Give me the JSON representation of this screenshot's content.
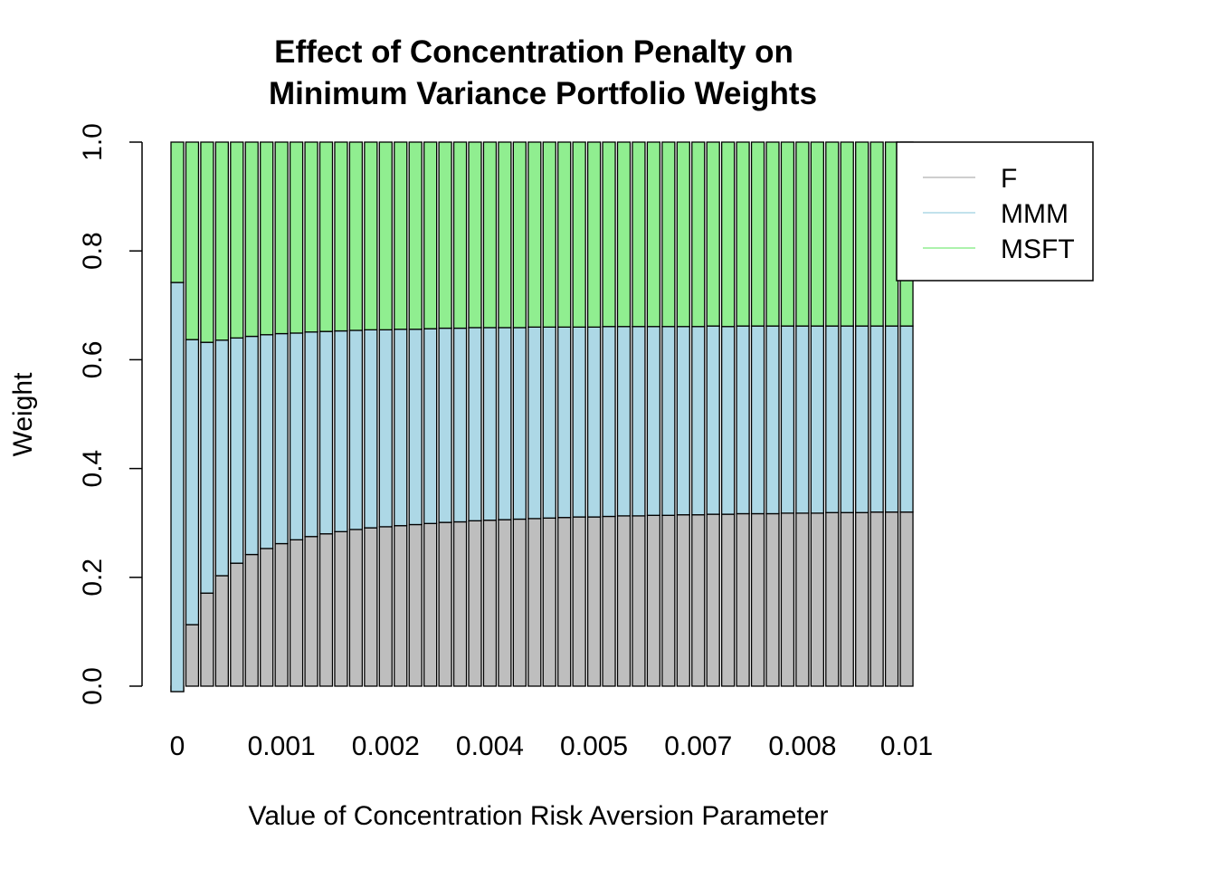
{
  "chart_data": {
    "type": "bar",
    "stacked": true,
    "title": "Effect of Concentration Penalty on\nMinimum Variance Portfolio Weights",
    "title_lines": [
      "Effect of Concentration Penalty on",
      "Minimum Variance Portfolio Weights"
    ],
    "xlabel": "Value of Concentration Risk Aversion Parameter",
    "ylabel": "Weight",
    "ylim": [
      0,
      1
    ],
    "y_ticks": [
      "0.0",
      "0.2",
      "0.4",
      "0.6",
      "0.8",
      "1.0"
    ],
    "x_tick_labels": [
      "0",
      "0.001",
      "0.002",
      "0.004",
      "0.005",
      "0.007",
      "0.008",
      "0.01"
    ],
    "x_tick_label_every": 7,
    "bar_count": 50,
    "legend_position": "top-right",
    "series": [
      {
        "name": "F",
        "color": "#bebebe",
        "values": [
          -0.01,
          0.113,
          0.171,
          0.203,
          0.226,
          0.242,
          0.253,
          0.262,
          0.269,
          0.275,
          0.28,
          0.284,
          0.288,
          0.291,
          0.293,
          0.295,
          0.297,
          0.299,
          0.301,
          0.302,
          0.304,
          0.305,
          0.306,
          0.307,
          0.308,
          0.309,
          0.31,
          0.311,
          0.311,
          0.312,
          0.313,
          0.313,
          0.314,
          0.314,
          0.315,
          0.315,
          0.316,
          0.316,
          0.317,
          0.317,
          0.317,
          0.318,
          0.318,
          0.318,
          0.319,
          0.319,
          0.319,
          0.32,
          0.32,
          0.32
        ]
      },
      {
        "name": "MMM",
        "color": "#add8e6",
        "values": [
          0.752,
          0.524,
          0.461,
          0.433,
          0.414,
          0.401,
          0.393,
          0.386,
          0.38,
          0.376,
          0.372,
          0.369,
          0.366,
          0.364,
          0.362,
          0.361,
          0.359,
          0.358,
          0.357,
          0.356,
          0.355,
          0.354,
          0.353,
          0.352,
          0.352,
          0.351,
          0.35,
          0.349,
          0.349,
          0.349,
          0.348,
          0.348,
          0.347,
          0.347,
          0.346,
          0.346,
          0.346,
          0.345,
          0.345,
          0.345,
          0.345,
          0.344,
          0.344,
          0.344,
          0.343,
          0.343,
          0.343,
          0.342,
          0.342,
          0.342
        ]
      },
      {
        "name": "MSFT",
        "color": "#90ee90",
        "values": [
          0.258,
          0.363,
          0.368,
          0.364,
          0.36,
          0.357,
          0.354,
          0.352,
          0.351,
          0.349,
          0.348,
          0.347,
          0.346,
          0.345,
          0.345,
          0.344,
          0.344,
          0.343,
          0.342,
          0.342,
          0.341,
          0.341,
          0.341,
          0.341,
          0.34,
          0.34,
          0.34,
          0.34,
          0.34,
          0.339,
          0.339,
          0.339,
          0.339,
          0.339,
          0.339,
          0.339,
          0.338,
          0.339,
          0.338,
          0.338,
          0.338,
          0.338,
          0.338,
          0.338,
          0.338,
          0.338,
          0.338,
          0.338,
          0.338,
          0.338
        ]
      }
    ]
  }
}
